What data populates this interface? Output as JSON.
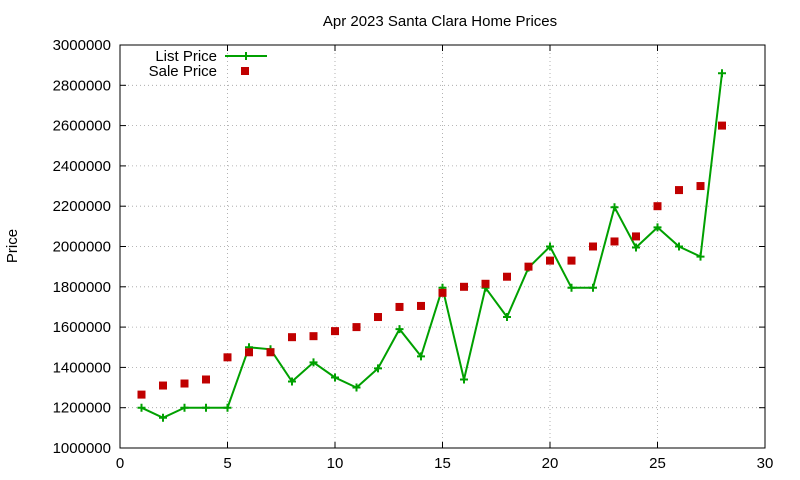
{
  "chart_data": {
    "type": "line",
    "title": "Apr 2023 Santa Clara Home Prices",
    "xlabel": "",
    "ylabel": "Price",
    "xlim": [
      0,
      30
    ],
    "ylim": [
      1000000,
      3000000
    ],
    "xticks": [
      0,
      5,
      10,
      15,
      20,
      25,
      30
    ],
    "yticks": [
      1000000,
      1200000,
      1400000,
      1600000,
      1800000,
      2000000,
      2200000,
      2400000,
      2600000,
      2800000,
      3000000
    ],
    "grid": true,
    "legend_position": "top-left",
    "x": [
      1,
      2,
      3,
      4,
      5,
      6,
      7,
      8,
      9,
      10,
      11,
      12,
      13,
      14,
      15,
      16,
      17,
      18,
      19,
      20,
      21,
      22,
      23,
      24,
      25,
      26,
      27,
      28
    ],
    "series": [
      {
        "name": "List Price",
        "style": "linespoints",
        "marker": "plus",
        "color": "#00a000",
        "values": [
          1200000,
          1150000,
          1200000,
          1200000,
          1200000,
          1500000,
          1490000,
          1330000,
          1425000,
          1350000,
          1300000,
          1395000,
          1590000,
          1455000,
          1795000,
          1340000,
          1795000,
          1650000,
          1895000,
          2000000,
          1795000,
          1795000,
          2195000,
          1995000,
          2095000,
          2000000,
          1950000,
          2860000
        ]
      },
      {
        "name": "Sale Price",
        "style": "points",
        "marker": "square",
        "color": "#c00000",
        "values": [
          1265000,
          1310000,
          1320000,
          1340000,
          1450000,
          1475000,
          1475000,
          1550000,
          1555000,
          1580000,
          1600000,
          1650000,
          1700000,
          1705000,
          1770000,
          1800000,
          1815000,
          1850000,
          1900000,
          1930000,
          1930000,
          2000000,
          2025000,
          2050000,
          2200000,
          2280000,
          2300000,
          2600000
        ]
      }
    ]
  }
}
